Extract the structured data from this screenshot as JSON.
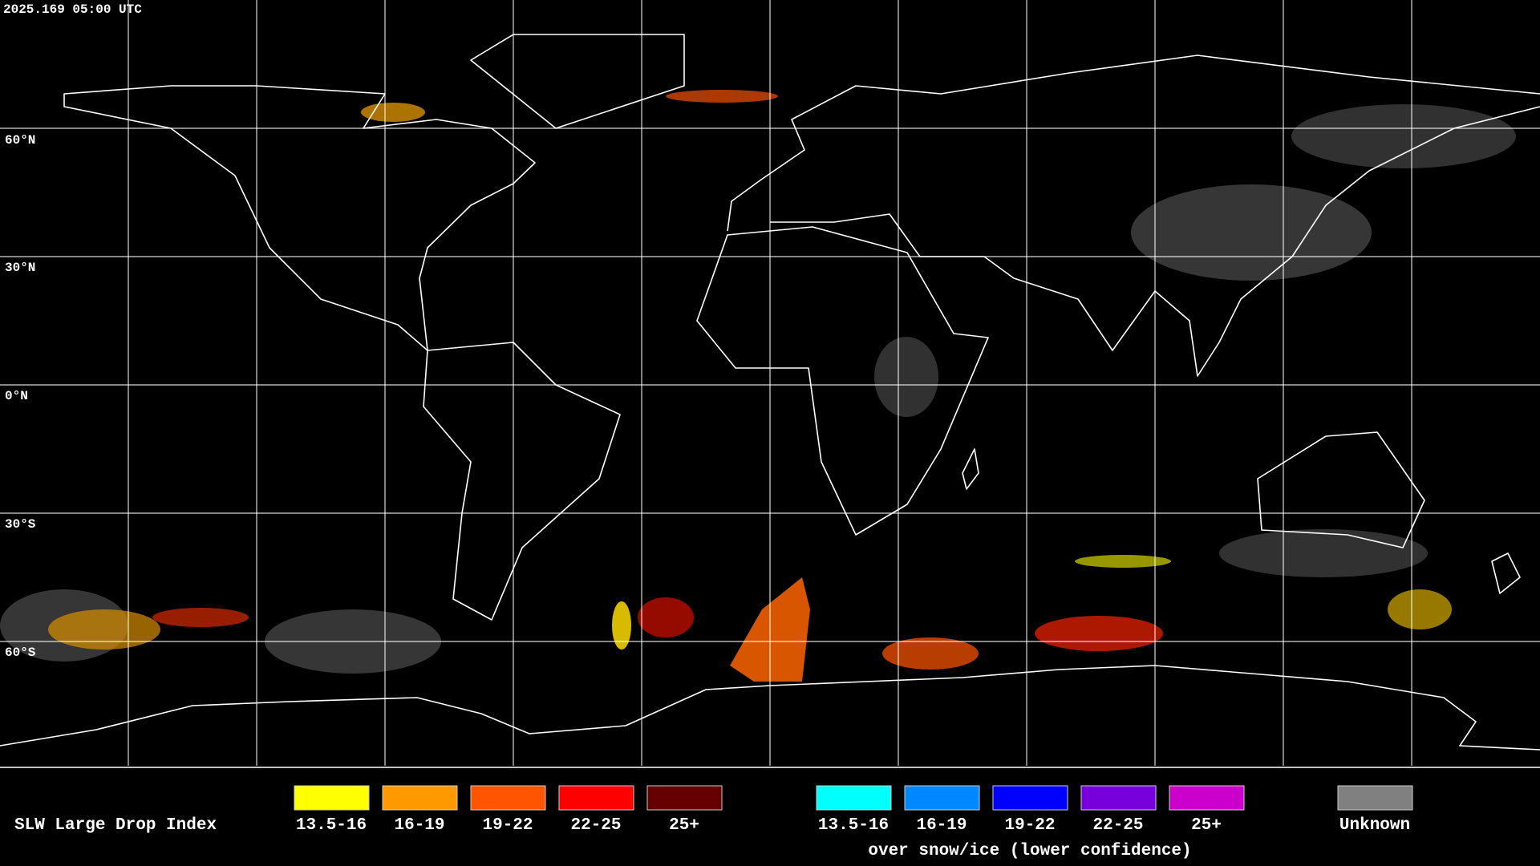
{
  "timestamp": "2025.169 05:00 UTC",
  "lat_labels": [
    "60°N",
    "30°N",
    "0°N",
    "30°S",
    "60°S"
  ],
  "legend": {
    "title": "SLW Large Drop Index",
    "items": [
      {
        "label": "13.5-16",
        "color": "#ffff00"
      },
      {
        "label": "16-19",
        "color": "#ff9900"
      },
      {
        "label": "19-22",
        "color": "#ff5500"
      },
      {
        "label": "22-25",
        "color": "#ff0000"
      },
      {
        "label": "25+",
        "color": "#660000"
      }
    ],
    "snow_items": [
      {
        "label": "13.5-16",
        "color": "#00ffff"
      },
      {
        "label": "16-19",
        "color": "#0088ff"
      },
      {
        "label": "19-22",
        "color": "#0000ff"
      },
      {
        "label": "22-25",
        "color": "#7700dd"
      },
      {
        "label": "25+",
        "color": "#cc00cc"
      }
    ],
    "snow_caption": "over snow/ice (lower confidence)",
    "unknown": {
      "label": "Unknown",
      "color": "#808080"
    }
  }
}
